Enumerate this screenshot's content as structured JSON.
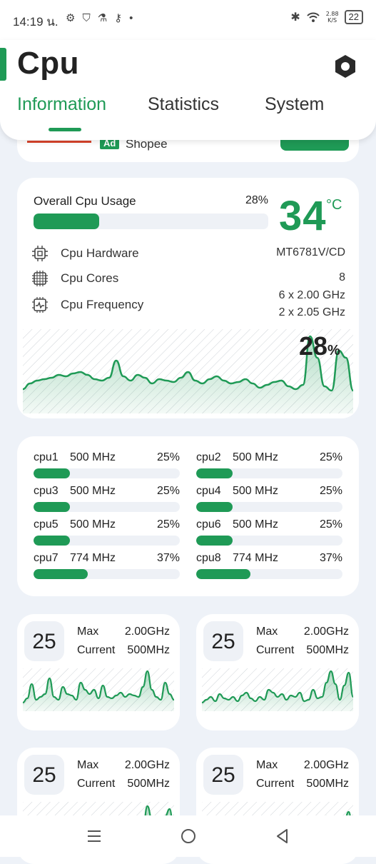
{
  "status_bar": {
    "time": "14:19 น.",
    "speed_value": "2.88",
    "speed_unit": "K/S",
    "battery": "22",
    "icons": [
      "gear-icon",
      "shield-icon",
      "flask-icon",
      "keyhole-icon",
      "dot-icon",
      "bluetooth-icon",
      "wifi-icon"
    ]
  },
  "header": {
    "title": "Cpu",
    "tabs": [
      {
        "label": "Information",
        "active": true
      },
      {
        "label": "Statistics",
        "active": false
      },
      {
        "label": "System",
        "active": false
      }
    ],
    "accent_color": "#1f9a56"
  },
  "ad": {
    "badge": "Ad",
    "text": "Shopee"
  },
  "overview": {
    "usage_label": "Overall Cpu Usage",
    "usage_pct": "28%",
    "usage_value": 0.28,
    "temperature": "34",
    "temperature_unit": "°C",
    "hardware_label": "Cpu Hardware",
    "hardware_value": "MT6781V/CD",
    "cores_label": "Cpu Cores",
    "cores_value": "8",
    "frequency_label": "Cpu Frequency",
    "frequency_line1": "6 x 2.00 GHz",
    "frequency_line2": "2 x 2.05 GHz",
    "graph_pct_value": "28",
    "graph_pct_unit": "%"
  },
  "cores": [
    {
      "name": "cpu1",
      "freq": "500 MHz",
      "pct": "25%",
      "value": 0.25
    },
    {
      "name": "cpu2",
      "freq": "500 MHz",
      "pct": "25%",
      "value": 0.25
    },
    {
      "name": "cpu3",
      "freq": "500 MHz",
      "pct": "25%",
      "value": 0.25
    },
    {
      "name": "cpu4",
      "freq": "500 MHz",
      "pct": "25%",
      "value": 0.25
    },
    {
      "name": "cpu5",
      "freq": "500 MHz",
      "pct": "25%",
      "value": 0.25
    },
    {
      "name": "cpu6",
      "freq": "500 MHz",
      "pct": "25%",
      "value": 0.25
    },
    {
      "name": "cpu7",
      "freq": "774 MHz",
      "pct": "37%",
      "value": 0.37
    },
    {
      "name": "cpu8",
      "freq": "774 MHz",
      "pct": "37%",
      "value": 0.37
    }
  ],
  "core_cards": [
    {
      "value": "25",
      "max_label": "Max",
      "max": "2.00GHz",
      "current_label": "Current",
      "current": "500MHz"
    },
    {
      "value": "25",
      "max_label": "Max",
      "max": "2.00GHz",
      "current_label": "Current",
      "current": "500MHz"
    },
    {
      "value": "25",
      "max_label": "Max",
      "max": "2.00GHz",
      "current_label": "Current",
      "current": "500MHz"
    },
    {
      "value": "25",
      "max_label": "Max",
      "max": "2.00GHz",
      "current_label": "Current",
      "current": "500MHz"
    }
  ],
  "nav": {
    "icons": [
      "menu-icon",
      "home-icon",
      "back-icon"
    ]
  }
}
